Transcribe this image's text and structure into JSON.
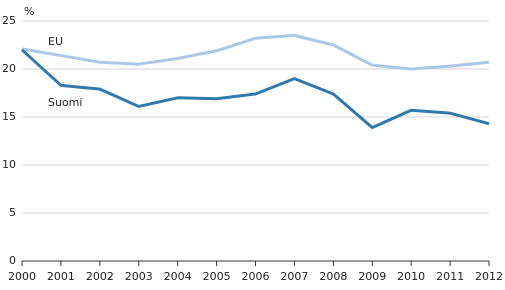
{
  "chart_data": {
    "type": "line",
    "y_label": "%",
    "x": [
      2000,
      2001,
      2002,
      2003,
      2004,
      2005,
      2006,
      2007,
      2008,
      2009,
      2010,
      2011,
      2012
    ],
    "xlim": [
      2000,
      2012
    ],
    "xticks": [
      2000,
      2001,
      2002,
      2003,
      2004,
      2005,
      2006,
      2007,
      2008,
      2009,
      2010,
      2011,
      2012
    ],
    "ylim": [
      0,
      25
    ],
    "yticks": [
      0,
      5,
      10,
      15,
      20,
      25
    ],
    "grid": true,
    "series": [
      {
        "name": "EU",
        "color": "#a9c8e8",
        "values": [
          22.1,
          21.4,
          20.7,
          20.5,
          21.1,
          21.9,
          23.2,
          23.5,
          22.5,
          20.4,
          20.0,
          20.3,
          20.7
        ]
      },
      {
        "name": "Suomi",
        "color": "#2f79ad",
        "values": [
          22.0,
          18.3,
          17.9,
          16.1,
          17.0,
          16.9,
          17.4,
          19.0,
          17.4,
          13.9,
          15.7,
          15.4,
          14.3
        ]
      }
    ]
  }
}
